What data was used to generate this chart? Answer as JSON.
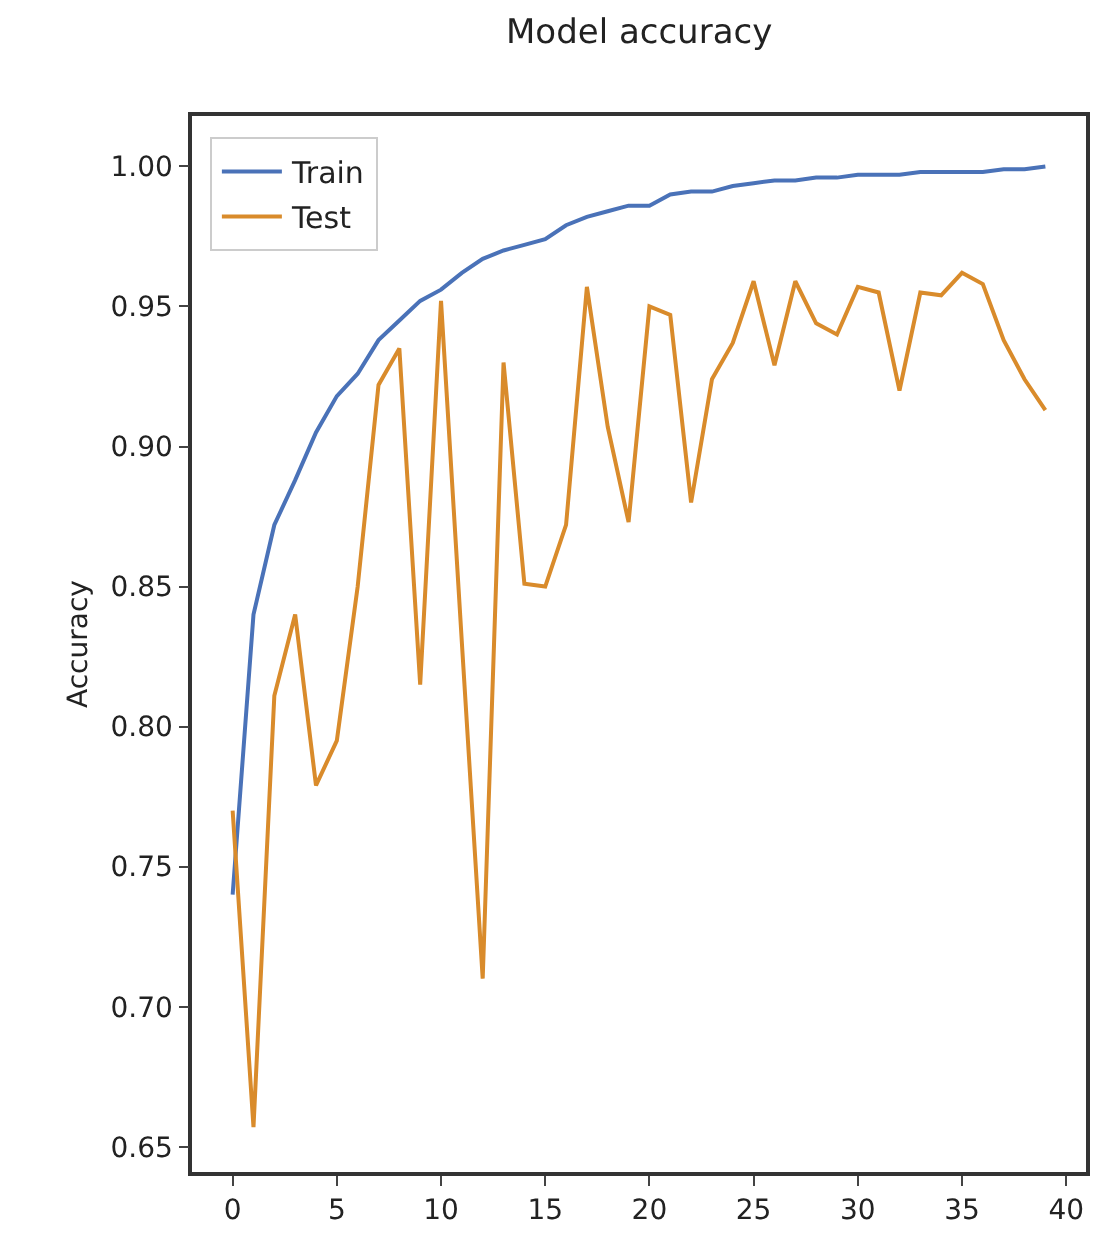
{
  "chart_data": {
    "type": "line",
    "title": "Model accuracy",
    "ylabel": "Accuracy",
    "x": [
      0,
      1,
      2,
      3,
      4,
      5,
      6,
      7,
      8,
      9,
      10,
      11,
      12,
      13,
      14,
      15,
      16,
      17,
      18,
      19,
      20,
      21,
      22,
      23,
      24,
      25,
      26,
      27,
      28,
      29,
      30,
      31,
      32,
      33,
      34,
      35,
      36,
      37,
      38,
      39
    ],
    "series": [
      {
        "name": "Train",
        "color": "#4a72b8",
        "values": [
          0.74,
          0.84,
          0.872,
          0.888,
          0.905,
          0.918,
          0.926,
          0.938,
          0.945,
          0.952,
          0.956,
          0.962,
          0.967,
          0.97,
          0.972,
          0.974,
          0.979,
          0.982,
          0.984,
          0.986,
          0.986,
          0.99,
          0.991,
          0.991,
          0.993,
          0.994,
          0.995,
          0.995,
          0.996,
          0.996,
          0.997,
          0.997,
          0.997,
          0.998,
          0.998,
          0.998,
          0.998,
          0.999,
          0.999,
          1.0
        ]
      },
      {
        "name": "Test",
        "color": "#d98b2b",
        "values": [
          0.77,
          0.657,
          0.811,
          0.84,
          0.779,
          0.795,
          0.85,
          0.922,
          0.935,
          0.815,
          0.952,
          0.83,
          0.71,
          0.93,
          0.851,
          0.85,
          0.872,
          0.957,
          0.907,
          0.873,
          0.95,
          0.947,
          0.88,
          0.924,
          0.937,
          0.959,
          0.929,
          0.959,
          0.944,
          0.94,
          0.957,
          0.955,
          0.92,
          0.955,
          0.954,
          0.962,
          0.958,
          0.938,
          0.924,
          0.913
        ]
      }
    ],
    "xlim": [
      -1.95,
      40.95
    ],
    "xticks": [
      0,
      5,
      10,
      15,
      20,
      25,
      30,
      35,
      40
    ],
    "ylim": [
      0.641,
      1.018
    ],
    "yticks": [
      {
        "value": 0.65,
        "label": "0.65"
      },
      {
        "value": 0.7,
        "label": "0.70"
      },
      {
        "value": 0.75,
        "label": "0.75"
      },
      {
        "value": 0.8,
        "label": "0.80"
      },
      {
        "value": 0.85,
        "label": "0.85"
      },
      {
        "value": 0.9,
        "label": "0.90"
      },
      {
        "value": 0.95,
        "label": "0.95"
      },
      {
        "value": 1.0,
        "label": "1.00"
      }
    ],
    "legend": "top left"
  }
}
